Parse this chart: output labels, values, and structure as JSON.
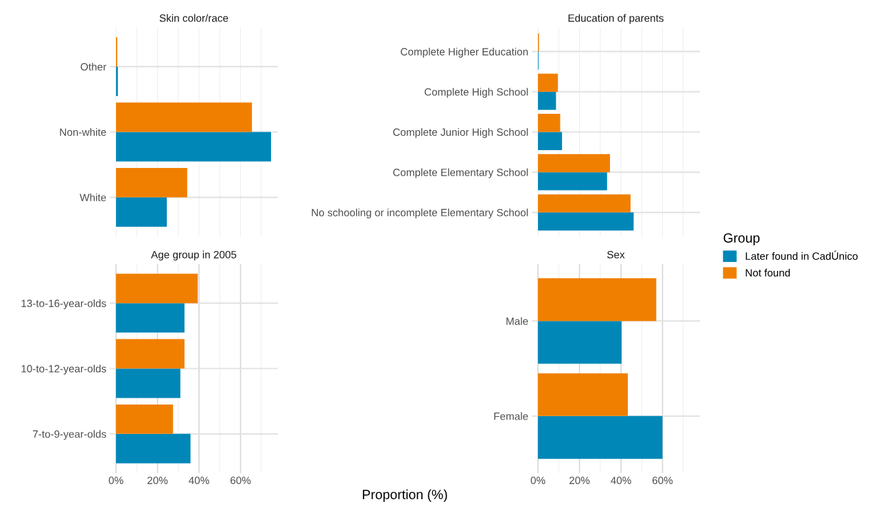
{
  "chart_data": [
    {
      "type": "bar",
      "orientation": "horizontal",
      "title": "Skin color/race",
      "categories": [
        "Other",
        "Non-white",
        "White"
      ],
      "series": [
        {
          "name": "Later found in CadÚnico",
          "color": "#0087b8",
          "values": [
            0.9,
            74.7,
            24.5
          ]
        },
        {
          "name": "Not found",
          "color": "#f07f00",
          "values": [
            0.6,
            65.5,
            34.3
          ]
        }
      ],
      "xlim": [
        -3,
        78
      ],
      "xticks": [
        {
          "value": 0,
          "label": null
        },
        {
          "value": 10,
          "label": null
        },
        {
          "value": 20,
          "label": null
        },
        {
          "value": 30,
          "label": null
        },
        {
          "value": 40,
          "label": null
        },
        {
          "value": 50,
          "label": null
        },
        {
          "value": 60,
          "label": null
        },
        {
          "value": 70,
          "label": null
        }
      ],
      "grid": true,
      "tick_labels": "y",
      "legend": "right",
      "legend_title": "Group"
    },
    {
      "type": "bar",
      "orientation": "horizontal",
      "title": "Education of parents",
      "categories": [
        "Complete Higher Education",
        "Complete High School",
        "Complete Junior High School",
        "Complete Elementary School",
        "No schooling or incomplete Elementary School"
      ],
      "series": [
        {
          "color": "#0087b8",
          "values": [
            0.3,
            8.7,
            11.6,
            33.3,
            46.1
          ]
        },
        {
          "color": "#f07f00",
          "values": [
            0.5,
            9.6,
            10.7,
            34.7,
            44.6
          ]
        }
      ],
      "xlim": [
        -3,
        78
      ],
      "xticks": [
        {
          "value": 0,
          "label": null
        },
        {
          "value": 10,
          "label": null
        },
        {
          "value": 20,
          "label": null
        },
        {
          "value": 30,
          "label": null
        },
        {
          "value": 40,
          "label": null
        },
        {
          "value": 50,
          "label": null
        },
        {
          "value": 60,
          "label": null
        },
        {
          "value": 70,
          "label": null
        }
      ],
      "grid": true,
      "tick_labels": "y"
    },
    {
      "type": "bar",
      "orientation": "horizontal",
      "title": "Age group in 2005",
      "categories": [
        "13-to-16-year-olds",
        "10-to-12-year-olds",
        "7-to-9-year-olds"
      ],
      "series": [
        {
          "color": "#0087b8",
          "values": [
            33.0,
            31.0,
            35.9
          ]
        },
        {
          "color": "#f07f00",
          "values": [
            39.4,
            33.0,
            27.5
          ]
        }
      ],
      "xlim": [
        -3,
        78
      ],
      "xticks": [
        {
          "value": 0,
          "label": "0%"
        },
        {
          "value": 10,
          "label": null
        },
        {
          "value": 20,
          "label": "20%"
        },
        {
          "value": 30,
          "label": null
        },
        {
          "value": 40,
          "label": "40%"
        },
        {
          "value": 50,
          "label": null
        },
        {
          "value": 60,
          "label": "60%"
        },
        {
          "value": 70,
          "label": null
        }
      ],
      "grid": true
    },
    {
      "type": "bar",
      "orientation": "horizontal",
      "title": "Sex",
      "xlabel": "Proportion (%)",
      "categories": [
        "Male",
        "Female"
      ],
      "series": [
        {
          "color": "#0087b8",
          "values": [
            40.3,
            60.0
          ]
        },
        {
          "color": "#f07f00",
          "values": [
            57.0,
            43.3
          ]
        }
      ],
      "xlim": [
        -3,
        78
      ],
      "xticks": [
        {
          "value": 0,
          "label": "0%"
        },
        {
          "value": 10,
          "label": null
        },
        {
          "value": 20,
          "label": "20%"
        },
        {
          "value": 30,
          "label": null
        },
        {
          "value": 40,
          "label": "40%"
        },
        {
          "value": 50,
          "label": null
        },
        {
          "value": 60,
          "label": "60%"
        },
        {
          "value": 70,
          "label": null
        }
      ],
      "grid": true
    }
  ]
}
